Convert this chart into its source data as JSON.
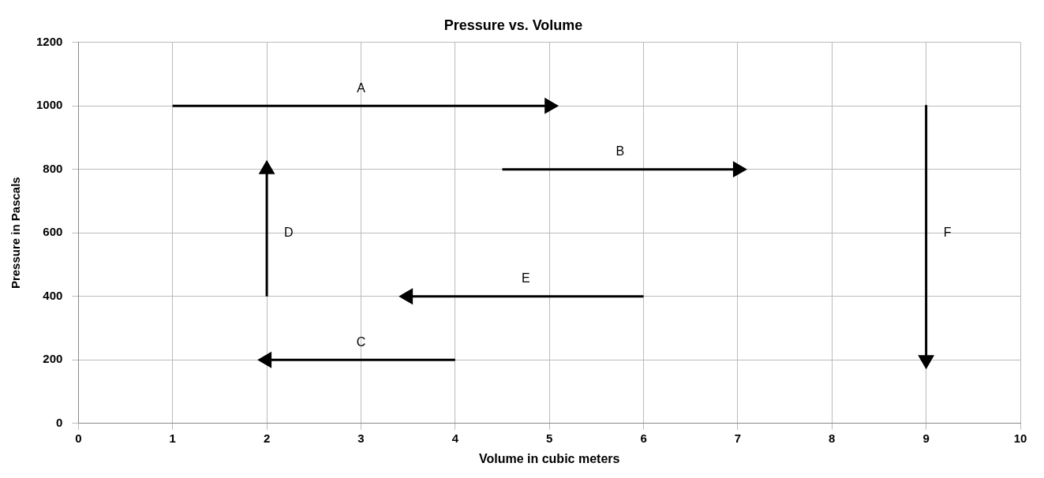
{
  "chart_data": {
    "type": "line",
    "title": "Pressure vs. Volume",
    "xlabel": "Volume in cubic meters",
    "ylabel": "Pressure in Pascals",
    "xlim": [
      0,
      10
    ],
    "xticks": [
      0,
      1,
      2,
      3,
      4,
      5,
      6,
      7,
      8,
      9,
      10
    ],
    "ylim": [
      0,
      1200
    ],
    "yticks": [
      0,
      200,
      400,
      600,
      800,
      1000,
      1200
    ],
    "grid": true,
    "legend": false,
    "marker": "triangle",
    "series": [
      {
        "name": "A",
        "color": "#000000",
        "x": [
          1,
          5
        ],
        "values": [
          1000,
          1000
        ]
      },
      {
        "name": "B",
        "color": "#000000",
        "x": [
          4.5,
          7
        ],
        "values": [
          800,
          800
        ]
      },
      {
        "name": "D",
        "color": "#000000",
        "x": [
          2,
          2
        ],
        "values": [
          400,
          800
        ]
      },
      {
        "name": "E",
        "color": "#000000",
        "x": [
          6,
          3.5
        ],
        "values": [
          400,
          400
        ]
      },
      {
        "name": "C",
        "color": "#000000",
        "x": [
          4,
          2
        ],
        "values": [
          200,
          200
        ]
      },
      {
        "name": "F",
        "color": "#000000",
        "x": [
          9,
          9
        ],
        "values": [
          1000,
          200
        ]
      }
    ]
  }
}
